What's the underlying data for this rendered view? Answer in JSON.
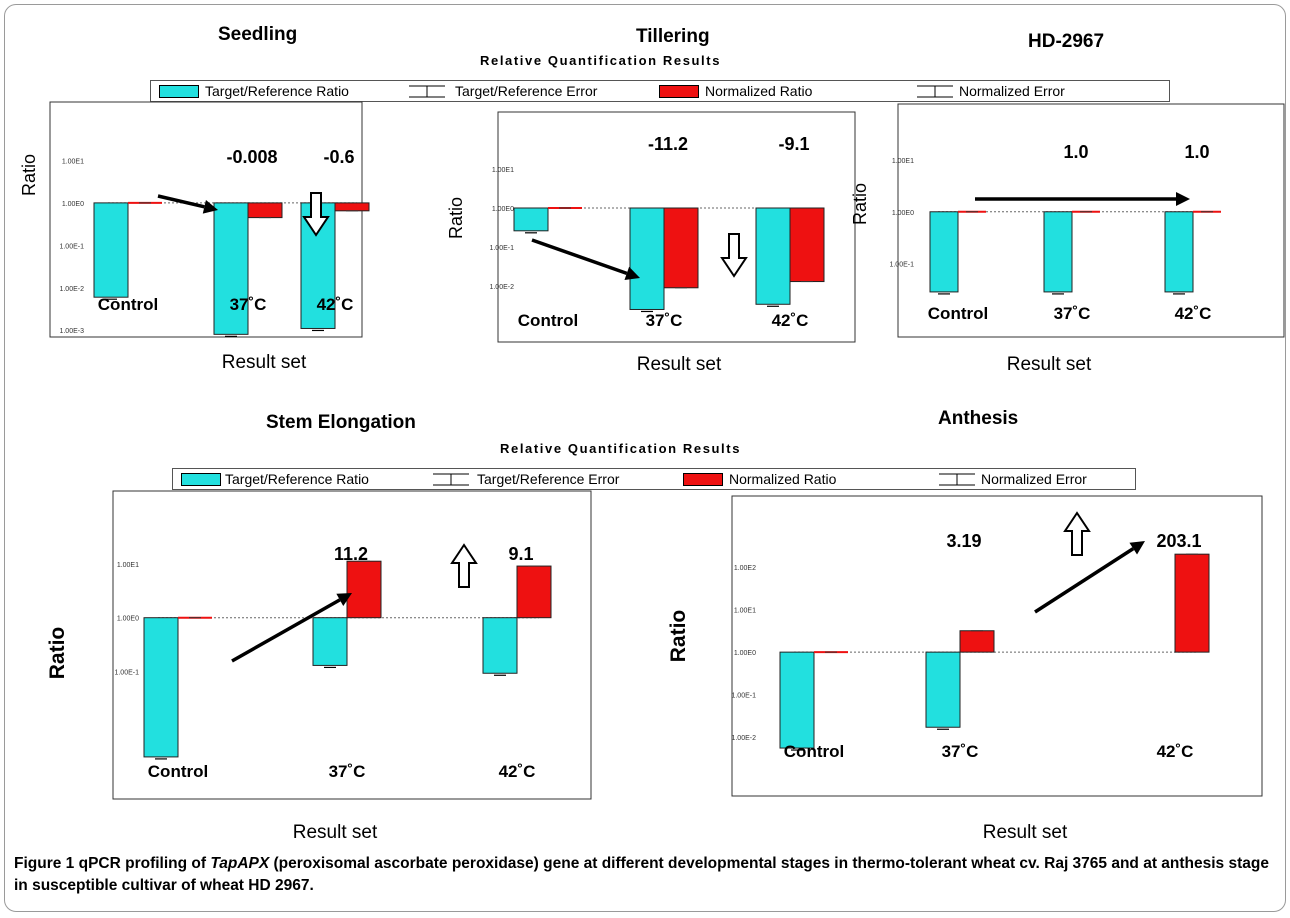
{
  "colors": {
    "target": "#22e0df",
    "normalized": "#ee1111",
    "bar_edge": "#222222",
    "arrow": "#000000"
  },
  "stage_titles": {
    "seedling": "Seedling",
    "tillering": "Tillering",
    "hd": "HD-2967",
    "stem": "Stem Elongation",
    "anthesis": "Anthesis"
  },
  "section_title": "Relative Quantification Results",
  "legend": {
    "target_ratio": "Target/Reference Ratio",
    "target_error": "Target/Reference Error",
    "normalized_ratio": "Normalized Ratio",
    "normalized_error": "Normalized Error"
  },
  "caption": {
    "fig_label": "Figure 1",
    "text1": " qPCR profiling of ",
    "gene": "TapAPX",
    "text2": " (peroxisomal ascorbate peroxidase) gene at different developmental stages in thermo-tolerant wheat cv. Raj 3765 and at anthesis stage in susceptible cultivar of wheat HD 2967."
  },
  "chart_data": [
    {
      "type": "bar",
      "id": "seedling",
      "scale": "log",
      "title": "Seedling",
      "xlabel": "Result set",
      "ylabel": "Ratio",
      "ylim": [
        0.0005,
        100
      ],
      "yticks": [
        {
          "v": 10,
          "label": "1.00E1"
        },
        {
          "v": 1,
          "label": "1.00E0"
        },
        {
          "v": 0.1,
          "label": "1.00E-1"
        },
        {
          "v": 0.01,
          "label": "1.00E-2"
        },
        {
          "v": 0.001,
          "label": "1.00E-3"
        }
      ],
      "categories": [
        "Control",
        "37˚C",
        "42˚C"
      ],
      "series": [
        {
          "name": "Target/Reference Ratio",
          "values": [
            0.006,
            0.0008,
            0.0011
          ]
        },
        {
          "name": "Normalized Ratio",
          "values": [
            1.0,
            0.45,
            0.65
          ]
        }
      ],
      "annotations": [
        {
          "cat": 1,
          "text": "-0.008"
        },
        {
          "cat": 2,
          "text": "-0.6"
        }
      ],
      "trend": "down"
    },
    {
      "type": "bar",
      "id": "tillering",
      "scale": "log",
      "title": "Tillering",
      "xlabel": "Result set",
      "ylabel": "Ratio",
      "ylim": [
        0.001,
        100
      ],
      "yticks": [
        {
          "v": 10,
          "label": "1.00E1"
        },
        {
          "v": 1,
          "label": "1.00E0"
        },
        {
          "v": 0.1,
          "label": "1.00E-1"
        },
        {
          "v": 0.01,
          "label": "1.00E-2"
        }
      ],
      "categories": [
        "Control",
        "37˚C",
        "42˚C"
      ],
      "series": [
        {
          "name": "Target/Reference Ratio",
          "values": [
            0.26,
            0.0025,
            0.0034
          ]
        },
        {
          "name": "Normalized Ratio",
          "values": [
            1.0,
            0.009,
            0.013
          ]
        }
      ],
      "annotations": [
        {
          "cat": 1,
          "text": "-11.2"
        },
        {
          "cat": 2,
          "text": "-9.1"
        }
      ],
      "trend": "down"
    },
    {
      "type": "bar",
      "id": "hd2967",
      "scale": "log",
      "title": "HD-2967",
      "xlabel": "Result set",
      "ylabel": "Ratio",
      "ylim": [
        0.008,
        60
      ],
      "yticks": [
        {
          "v": 10,
          "label": "1.00E1"
        },
        {
          "v": 1,
          "label": "1.00E0"
        },
        {
          "v": 0.1,
          "label": "1.00E-1"
        }
      ],
      "categories": [
        "Control",
        "37˚C",
        "42˚C"
      ],
      "series": [
        {
          "name": "Target/Reference Ratio",
          "values": [
            0.028,
            0.028,
            0.028
          ]
        },
        {
          "name": "Normalized Ratio",
          "values": [
            1.0,
            1.0,
            1.0
          ]
        }
      ],
      "annotations": [
        {
          "cat": 1,
          "text": "1.0"
        },
        {
          "cat": 2,
          "text": "1.0"
        }
      ],
      "trend": "flat"
    },
    {
      "type": "bar",
      "id": "stem",
      "scale": "log",
      "title": "Stem Elongation",
      "xlabel": "Result set",
      "ylabel": "Ratio",
      "ylim": [
        0.0012,
        100
      ],
      "yticks": [
        {
          "v": 10,
          "label": "1.00E1"
        },
        {
          "v": 1,
          "label": "1.00E0"
        },
        {
          "v": 0.1,
          "label": "1.00E-1"
        }
      ],
      "categories": [
        "Control",
        "37˚C",
        "42˚C"
      ],
      "series": [
        {
          "name": "Target/Reference Ratio",
          "values": [
            0.0026,
            0.13,
            0.093
          ]
        },
        {
          "name": "Normalized Ratio",
          "values": [
            1.0,
            11.2,
            9.1
          ]
        }
      ],
      "annotations": [
        {
          "cat": 1,
          "text": "11.2"
        },
        {
          "cat": 2,
          "text": "9.1"
        }
      ],
      "trend": "up"
    },
    {
      "type": "bar",
      "id": "anthesis",
      "scale": "log",
      "title": "Anthesis",
      "xlabel": "Result set",
      "ylabel": "Ratio",
      "ylim": [
        0.0015,
        2000
      ],
      "yticks": [
        {
          "v": 100,
          "label": "1.00E2"
        },
        {
          "v": 10,
          "label": "1.00E1"
        },
        {
          "v": 1,
          "label": "1.00E0"
        },
        {
          "v": 0.1,
          "label": "1.00E-1"
        },
        {
          "v": 0.01,
          "label": "1.00E-2"
        }
      ],
      "categories": [
        "Control",
        "37˚C",
        "42˚C"
      ],
      "series": [
        {
          "name": "Target/Reference Ratio",
          "values": [
            0.0055,
            0.017,
            null
          ]
        },
        {
          "name": "Normalized Ratio",
          "values": [
            1.0,
            3.19,
            203.1
          ]
        }
      ],
      "annotations": [
        {
          "cat": 1,
          "text": "3.19"
        },
        {
          "cat": 2,
          "text": "203.1"
        }
      ],
      "trend": "up"
    }
  ]
}
